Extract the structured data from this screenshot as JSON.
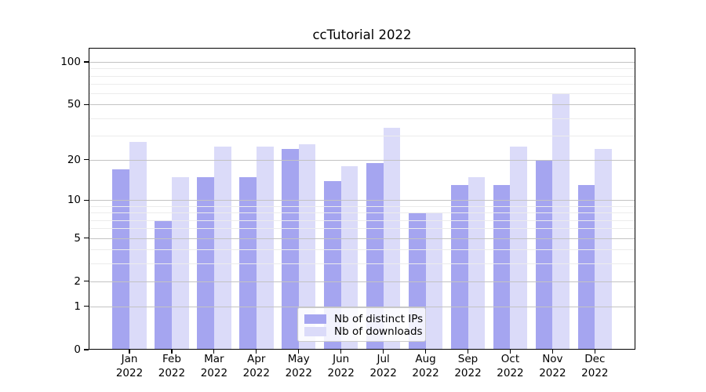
{
  "title": "ccTutorial 2022",
  "chart_data": {
    "type": "bar",
    "title": "ccTutorial 2022",
    "categories": [
      "Jan",
      "Feb",
      "Mar",
      "Apr",
      "May",
      "Jun",
      "Jul",
      "Aug",
      "Sep",
      "Oct",
      "Nov",
      "Dec"
    ],
    "year_label": "2022",
    "series": [
      {
        "name": "Nb of distinct IPs",
        "color": "#a5a5f0",
        "values": [
          17,
          7,
          15,
          15,
          24,
          14,
          19,
          8,
          13,
          13,
          20,
          13
        ]
      },
      {
        "name": "Nb of downloads",
        "color": "#dbdbf9",
        "values": [
          27,
          15,
          25,
          25,
          26,
          18,
          34,
          8,
          15,
          25,
          60,
          24
        ]
      }
    ],
    "xlabel": "",
    "ylabel": "",
    "yscale": "log1p",
    "ylim": [
      0,
      125
    ],
    "y_major_ticks": [
      0,
      1,
      2,
      5,
      10,
      20,
      50,
      100
    ],
    "y_minor_gridlines": [
      3,
      4,
      6,
      7,
      8,
      9,
      30,
      40,
      60,
      70,
      80,
      90
    ],
    "grid": true,
    "grid_above_bars": true,
    "legend_position": "lower center",
    "colors": {
      "major_grid": "#c3c3c3",
      "minor_grid": "#ececec",
      "axis": "#000000",
      "background": "#ffffff"
    }
  }
}
